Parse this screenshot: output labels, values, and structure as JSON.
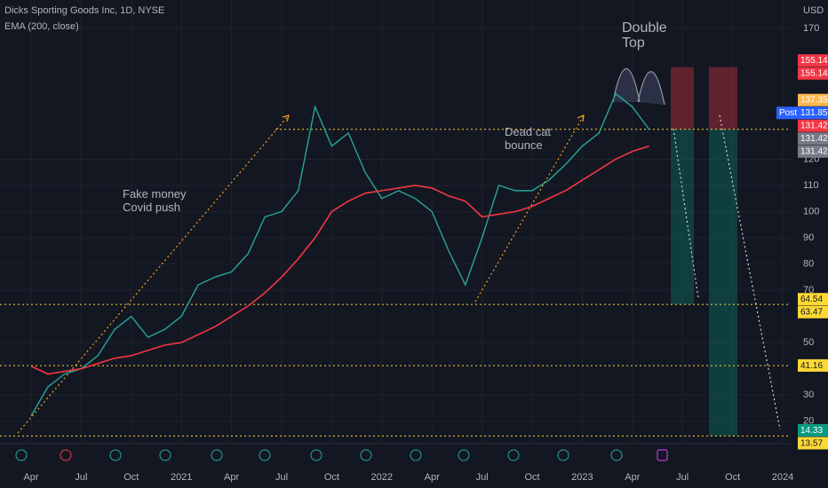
{
  "chart_data": {
    "type": "line",
    "title": "Dicks Sporting Goods Inc, 1D, NYSE",
    "currency": "USD",
    "x": [
      "2020-04",
      "2020-05",
      "2020-06",
      "2020-07",
      "2020-08",
      "2020-09",
      "2020-10",
      "2020-11",
      "2020-12",
      "2021-01",
      "2021-02",
      "2021-03",
      "2021-04",
      "2021-05",
      "2021-06",
      "2021-07",
      "2021-08",
      "2021-09",
      "2021-10",
      "2021-11",
      "2021-12",
      "2022-01",
      "2022-02",
      "2022-03",
      "2022-04",
      "2022-05",
      "2022-06",
      "2022-07",
      "2022-08",
      "2022-09",
      "2022-10",
      "2022-11",
      "2022-12",
      "2023-01",
      "2023-02",
      "2023-03",
      "2023-04",
      "2023-05"
    ],
    "series": [
      {
        "color": "#26a69a",
        "values": [
          22,
          33,
          38,
          40,
          45,
          55,
          60,
          52,
          55,
          60,
          72,
          75,
          77,
          84,
          98,
          100,
          108,
          140,
          125,
          130,
          115,
          105,
          108,
          105,
          100,
          85,
          72,
          90,
          110,
          108,
          108,
          112,
          118,
          125,
          130,
          145,
          140,
          131.42
        ]
      },
      {
        "name": "EMA (200, close)",
        "color": "#f23645",
        "values": [
          41,
          38,
          39,
          40,
          42,
          44,
          45,
          47,
          49,
          50,
          53,
          56,
          60,
          64,
          69,
          75,
          82,
          90,
          100,
          104,
          107,
          108,
          109,
          110,
          109,
          106,
          104,
          98,
          99,
          100,
          102,
          105,
          108,
          112,
          116,
          120,
          123,
          125
        ]
      }
    ],
    "ylim": [
      11.4,
      180.8
    ],
    "yticks": [
      20,
      30,
      50,
      70,
      80,
      90,
      100,
      110,
      120,
      170
    ],
    "xticks": [
      {
        "value": "2020-04",
        "label": "Apr"
      },
      {
        "value": "2020-07",
        "label": "Jul"
      },
      {
        "value": "2020-10",
        "label": "Oct"
      },
      {
        "value": "2021-01",
        "label": "2021"
      },
      {
        "value": "2021-04",
        "label": "Apr"
      },
      {
        "value": "2021-07",
        "label": "Jul"
      },
      {
        "value": "2021-10",
        "label": "Oct"
      },
      {
        "value": "2022-01",
        "label": "2022"
      },
      {
        "value": "2022-04",
        "label": "Apr"
      },
      {
        "value": "2022-07",
        "label": "Jul"
      },
      {
        "value": "2022-10",
        "label": "Oct"
      },
      {
        "value": "2023-01",
        "label": "2023"
      },
      {
        "value": "2023-04",
        "label": "Apr"
      },
      {
        "value": "2023-07",
        "label": "Jul"
      },
      {
        "value": "2023-10",
        "label": "Oct"
      },
      {
        "value": "2024-01",
        "label": "2024"
      }
    ],
    "levels": [
      131.42,
      64.54,
      41.16,
      14.33
    ],
    "positions": [
      {
        "stop": 155.14,
        "entry": 131.42,
        "target": 64.54
      },
      {
        "stop": 155.14,
        "entry": 131.42,
        "target": 14.33
      }
    ],
    "price_labels": [
      {
        "value": 155.14,
        "color": "#f23645"
      },
      {
        "value": 155.14,
        "color": "#f23645"
      },
      {
        "value": 137.35,
        "color": "#ffb74d"
      },
      {
        "tag": "Post",
        "value": 131.85,
        "color": "#2962ff"
      },
      {
        "value": 131.42,
        "color": "#f23645"
      },
      {
        "value": 131.42,
        "color": "#787b86"
      },
      {
        "value": 131.42,
        "color": "#787b86"
      },
      {
        "value": 64.54,
        "color": "#fdd835"
      },
      {
        "value": 63.47,
        "color": "#fdd835"
      },
      {
        "value": 41.16,
        "color": "#fdd835"
      },
      {
        "value": 14.33,
        "color": "#089981"
      },
      {
        "value": 13.57,
        "color": "#fdd835"
      }
    ],
    "annotations": [
      {
        "lines": [
          "Fake money",
          "Covid push"
        ],
        "color": "#f7a21b"
      },
      {
        "lines": [
          "Dead cat",
          "bounce"
        ],
        "color": "#f7a21b"
      },
      {
        "lines": [
          "Double",
          "Top"
        ],
        "color": "#b2b5be"
      }
    ]
  }
}
